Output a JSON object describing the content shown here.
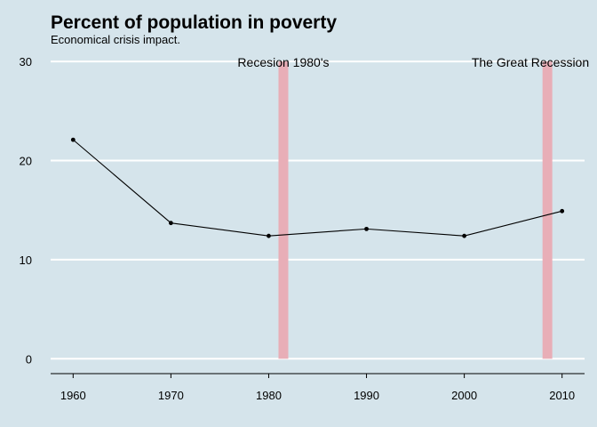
{
  "chart_data": {
    "type": "line",
    "title": "Percent of population in poverty",
    "subtitle": "Economical crisis impact.",
    "xlabel": "",
    "ylabel": "",
    "x": [
      1960,
      1970,
      1980,
      1990,
      2000,
      2010
    ],
    "series": [
      {
        "values": [
          22.1,
          13.7,
          12.4,
          13.1,
          12.4,
          14.9
        ]
      }
    ],
    "xticks": [
      1960,
      1970,
      1980,
      1990,
      2000,
      2010
    ],
    "yticks": [
      0,
      10,
      20,
      30
    ],
    "xlim": [
      1957.7,
      2012.3
    ],
    "ylim": [
      -1.5,
      31
    ],
    "grid": "horizontal",
    "legend": "none",
    "recession_bands": [
      {
        "label": "Recesion 1980's",
        "x": 1981.5
      },
      {
        "label": "The Great Recession",
        "x": 2008.5
      }
    ],
    "colors": {
      "background": "#d5e4eb",
      "line": "#000000",
      "band": "#e8aeb7",
      "grid": "#ffffff"
    }
  }
}
